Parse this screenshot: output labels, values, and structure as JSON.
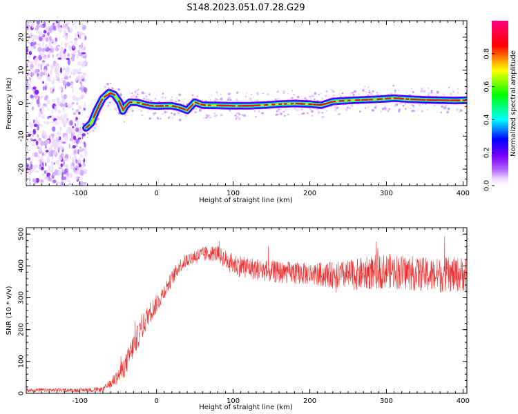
{
  "figure": {
    "title": "S148.2023.051.07.28.G29"
  },
  "chart_data": [
    {
      "type": "heatmap",
      "xlabel": "Height of straight line (km)",
      "ylabel": "Frequency (Hz)",
      "xlim": [
        -170,
        405
      ],
      "ylim": [
        -25,
        25
      ],
      "x_ticks": [
        -100,
        0,
        100,
        200,
        300,
        400
      ],
      "y_ticks": [
        -20,
        -10,
        0,
        10,
        20
      ],
      "colorbar": {
        "label": "Normalized spectral amplitude",
        "range": [
          0,
          1
        ],
        "ticks": [
          0.0,
          0.2,
          0.4,
          0.6,
          0.8
        ],
        "colormap": [
          "#ffffff",
          "#8a00ff",
          "#0000ff",
          "#00ffff",
          "#00ff00",
          "#ffff00",
          "#ff0000",
          "#ff0080"
        ]
      },
      "noise_region_x": [
        -170,
        -92
      ],
      "ridge": {
        "x": [
          -92,
          -85,
          -78,
          -70,
          -62,
          -55,
          -48,
          -44,
          -40,
          -35,
          -25,
          -10,
          0,
          10,
          20,
          30,
          40,
          45,
          50,
          60,
          80,
          100,
          120,
          140,
          160,
          180,
          200,
          215,
          230,
          250,
          270,
          290,
          310,
          330,
          350,
          370,
          390,
          405
        ],
        "y": [
          -7.5,
          -6,
          -2,
          1.5,
          3.2,
          2.6,
          0.2,
          -2.4,
          -0.8,
          0.3,
          0.2,
          -0.7,
          -0.9,
          -0.8,
          -0.8,
          -1.3,
          -2.2,
          -0.9,
          0.3,
          -0.6,
          -0.7,
          -0.8,
          -0.8,
          -0.6,
          -0.3,
          -0.1,
          -0.3,
          -0.6,
          0.5,
          0.8,
          1.0,
          1.2,
          1.5,
          1.2,
          1.0,
          0.9,
          0.8,
          0.9
        ]
      }
    },
    {
      "type": "line",
      "xlabel": "Height of straight line (km)",
      "ylabel": "SNR (10 * v/v)",
      "xlim": [
        -170,
        405
      ],
      "ylim": [
        0,
        520
      ],
      "x_ticks": [
        -100,
        0,
        100,
        200,
        300,
        400
      ],
      "y_ticks": [
        0,
        100,
        200,
        300,
        400,
        500
      ],
      "color": "#f03030",
      "envelope": {
        "x": [
          -170,
          -100,
          -70,
          -60,
          -50,
          -40,
          -30,
          -20,
          -10,
          0,
          10,
          20,
          30,
          40,
          50,
          60,
          70,
          80,
          90,
          100,
          120,
          140,
          160,
          180,
          200,
          220,
          240,
          260,
          280,
          300,
          320,
          340,
          360,
          380,
          405
        ],
        "y": [
          10,
          10,
          12,
          30,
          55,
          90,
          150,
          200,
          250,
          280,
          320,
          360,
          400,
          420,
          430,
          435,
          440,
          438,
          420,
          405,
          395,
          385,
          380,
          378,
          375,
          372,
          370,
          372,
          380,
          385,
          380,
          375,
          370,
          372,
          375
        ],
        "spread": [
          6,
          6,
          8,
          15,
          25,
          35,
          40,
          40,
          35,
          30,
          25,
          25,
          22,
          22,
          25,
          25,
          25,
          25,
          30,
          35,
          35,
          35,
          35,
          35,
          35,
          40,
          45,
          50,
          55,
          55,
          55,
          55,
          55,
          55,
          55
        ]
      }
    }
  ]
}
